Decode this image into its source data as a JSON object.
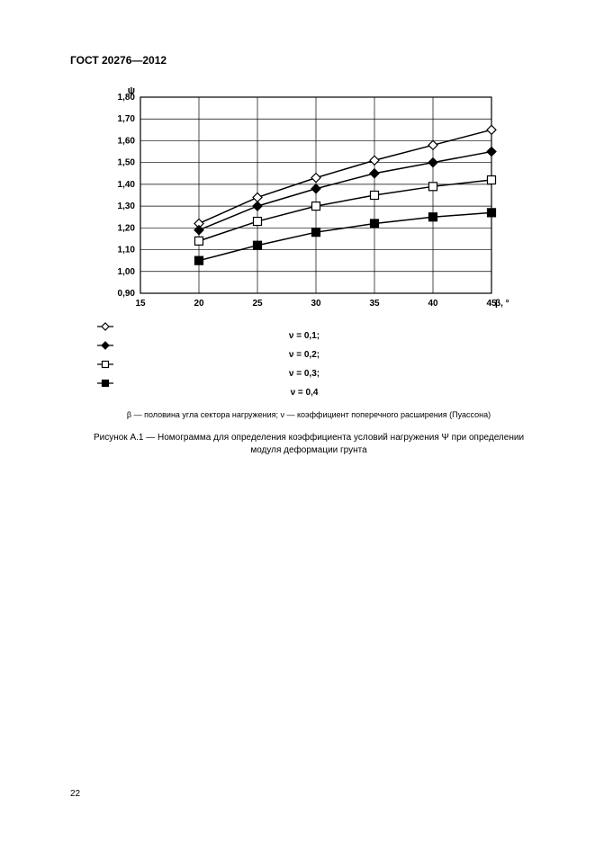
{
  "doc_header": "ГОСТ 20276—2012",
  "page_number": "22",
  "chart": {
    "type": "line",
    "y_label_symbol": "ψ",
    "x_label_suffix": "β, °",
    "xlim": [
      15,
      45
    ],
    "ylim": [
      0.9,
      1.8
    ],
    "xticks": [
      15,
      20,
      25,
      30,
      35,
      40,
      45
    ],
    "xtick_labels": [
      "15",
      "20",
      "25",
      "30",
      "35",
      "40",
      "45"
    ],
    "yticks": [
      0.9,
      1.0,
      1.1,
      1.2,
      1.3,
      1.4,
      1.5,
      1.6,
      1.7,
      1.8
    ],
    "ytick_labels": [
      "0,90",
      "1,00",
      "1,10",
      "1,20",
      "1,30",
      "1,40",
      "1,50",
      "1,60",
      "1,70",
      "1,80"
    ],
    "grid_color": "#000000",
    "axis_color": "#000000",
    "background_color": "#ffffff",
    "line_width": 1.5,
    "marker_size": 5,
    "font_size_ticks": 10,
    "series": [
      {
        "name": "ν = 0,1",
        "marker": "diamond",
        "fill": "none",
        "color": "#000000",
        "x": [
          20,
          25,
          30,
          35,
          40,
          45
        ],
        "y": [
          1.22,
          1.34,
          1.43,
          1.51,
          1.58,
          1.65
        ]
      },
      {
        "name": "ν = 0,2",
        "marker": "diamond",
        "fill": "solid",
        "color": "#000000",
        "x": [
          20,
          25,
          30,
          35,
          40,
          45
        ],
        "y": [
          1.19,
          1.3,
          1.38,
          1.45,
          1.5,
          1.55
        ]
      },
      {
        "name": "ν = 0,3",
        "marker": "square",
        "fill": "none",
        "color": "#000000",
        "x": [
          20,
          25,
          30,
          35,
          40,
          45
        ],
        "y": [
          1.14,
          1.23,
          1.3,
          1.35,
          1.39,
          1.42
        ]
      },
      {
        "name": "ν = 0,4",
        "marker": "square",
        "fill": "solid",
        "color": "#000000",
        "x": [
          20,
          25,
          30,
          35,
          40,
          45
        ],
        "y": [
          1.05,
          1.12,
          1.18,
          1.22,
          1.25,
          1.27
        ]
      }
    ]
  },
  "legend_items": [
    "ν = 0,1;",
    "ν = 0,2;",
    "ν = 0,3;",
    "ν = 0,4"
  ],
  "note_text": "β — половина угла сектора нагружения;   ν  — коэффициент поперечного расширения (Пуассона)",
  "caption_line1": "Рисунок А.1  —  Номограмма для определения коэффициента условий нагружения  Ψ  при определении",
  "caption_line2": "модуля деформации грунта"
}
